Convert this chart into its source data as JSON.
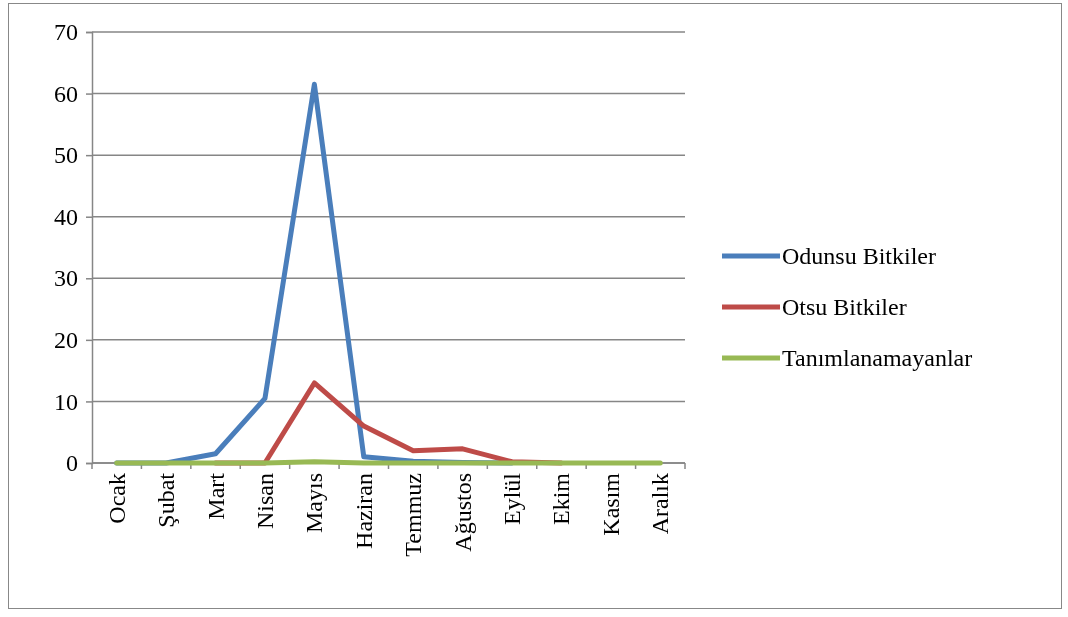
{
  "chart_data": {
    "type": "line",
    "categories": [
      "Ocak",
      "Şubat",
      "Mart",
      "Nisan",
      "Mayıs",
      "Haziran",
      "Temmuz",
      "Ağustos",
      "Eylül",
      "Ekim",
      "Kasım",
      "Aralık"
    ],
    "series": [
      {
        "name": "Odunsu Bitkiler",
        "color": "#4a7ebb",
        "values": [
          0,
          0,
          1.5,
          10.5,
          61.5,
          1,
          0.3,
          0.1,
          0,
          null,
          null,
          null
        ]
      },
      {
        "name": "Otsu Bitkiler",
        "color": "#be4b48",
        "values": [
          null,
          null,
          0,
          0,
          13,
          6,
          2,
          2.3,
          0.2,
          0,
          null,
          null
        ]
      },
      {
        "name": "Tanımlanamayanlar",
        "color": "#98b954",
        "values": [
          0,
          0,
          0,
          0,
          0.2,
          0,
          0,
          0,
          0,
          0,
          0,
          0
        ]
      }
    ],
    "ylim": [
      0,
      70
    ],
    "yticks": [
      0,
      10,
      20,
      30,
      40,
      50,
      60,
      70
    ],
    "grid": "y",
    "legend": "right",
    "marker": "none",
    "line_style": "solid"
  }
}
